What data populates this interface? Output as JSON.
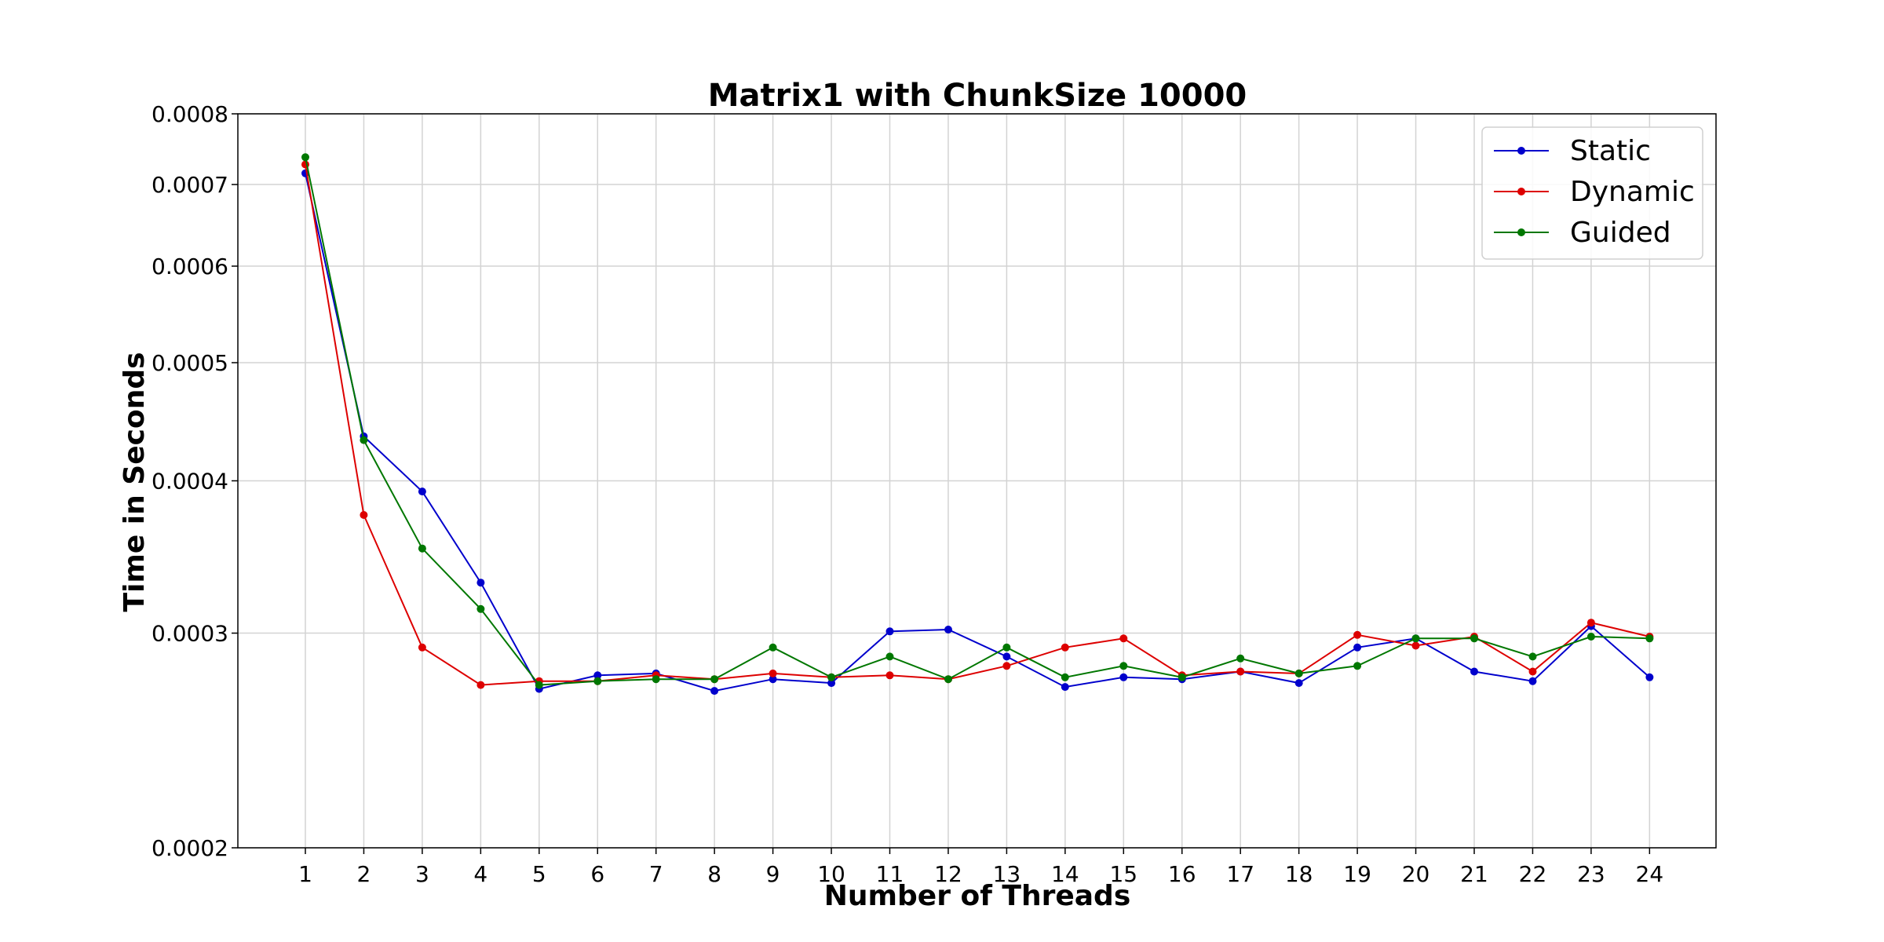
{
  "chart_data": {
    "type": "line",
    "title": "Matrix1 with ChunkSize 10000",
    "xlabel": "Number of Threads",
    "ylabel": "Time in Seconds",
    "yscale": "log",
    "ylim": [
      0.0002,
      0.0008
    ],
    "yticks": [
      0.0002,
      0.0003,
      0.0004,
      0.0005,
      0.0006,
      0.0007,
      0.0008
    ],
    "ytick_labels": [
      "0.0002",
      "0.0003",
      "0.0004",
      "0.0005",
      "0.0006",
      "0.0007",
      "0.0008"
    ],
    "x": [
      1,
      2,
      3,
      4,
      5,
      6,
      7,
      8,
      9,
      10,
      11,
      12,
      13,
      14,
      15,
      16,
      17,
      18,
      19,
      20,
      21,
      22,
      23,
      24
    ],
    "xtick_labels": [
      "1",
      "2",
      "3",
      "4",
      "5",
      "6",
      "7",
      "8",
      "9",
      "10",
      "11",
      "12",
      "13",
      "14",
      "15",
      "16",
      "17",
      "18",
      "19",
      "20",
      "21",
      "22",
      "23",
      "24"
    ],
    "grid": true,
    "legend_position": "top-right",
    "series": [
      {
        "name": "Static",
        "color": "#0000cc",
        "values": [
          0.000715,
          0.000435,
          0.000392,
          0.00033,
          0.00027,
          0.000277,
          0.000278,
          0.000269,
          0.000275,
          0.000273,
          0.000301,
          0.000302,
          0.000287,
          0.000271,
          0.000276,
          0.000275,
          0.000279,
          0.000273,
          0.000292,
          0.000297,
          0.000279,
          0.000274,
          0.000304,
          0.000276
        ]
      },
      {
        "name": "Dynamic",
        "color": "#dd0000",
        "values": [
          0.000727,
          0.000375,
          0.000292,
          0.000272,
          0.000274,
          0.000274,
          0.000277,
          0.000275,
          0.000278,
          0.000276,
          0.000277,
          0.000275,
          0.000282,
          0.000292,
          0.000297,
          0.000277,
          0.000279,
          0.000278,
          0.000299,
          0.000293,
          0.000298,
          0.000279,
          0.000306,
          0.000298
        ]
      },
      {
        "name": "Guided",
        "color": "#007700",
        "values": [
          0.000737,
          0.000432,
          0.000352,
          0.000314,
          0.000272,
          0.000274,
          0.000275,
          0.000275,
          0.000292,
          0.000276,
          0.000287,
          0.000275,
          0.000292,
          0.000276,
          0.000282,
          0.000276,
          0.000286,
          0.000278,
          0.000282,
          0.000297,
          0.000297,
          0.000287,
          0.000298,
          0.000297
        ]
      }
    ]
  }
}
